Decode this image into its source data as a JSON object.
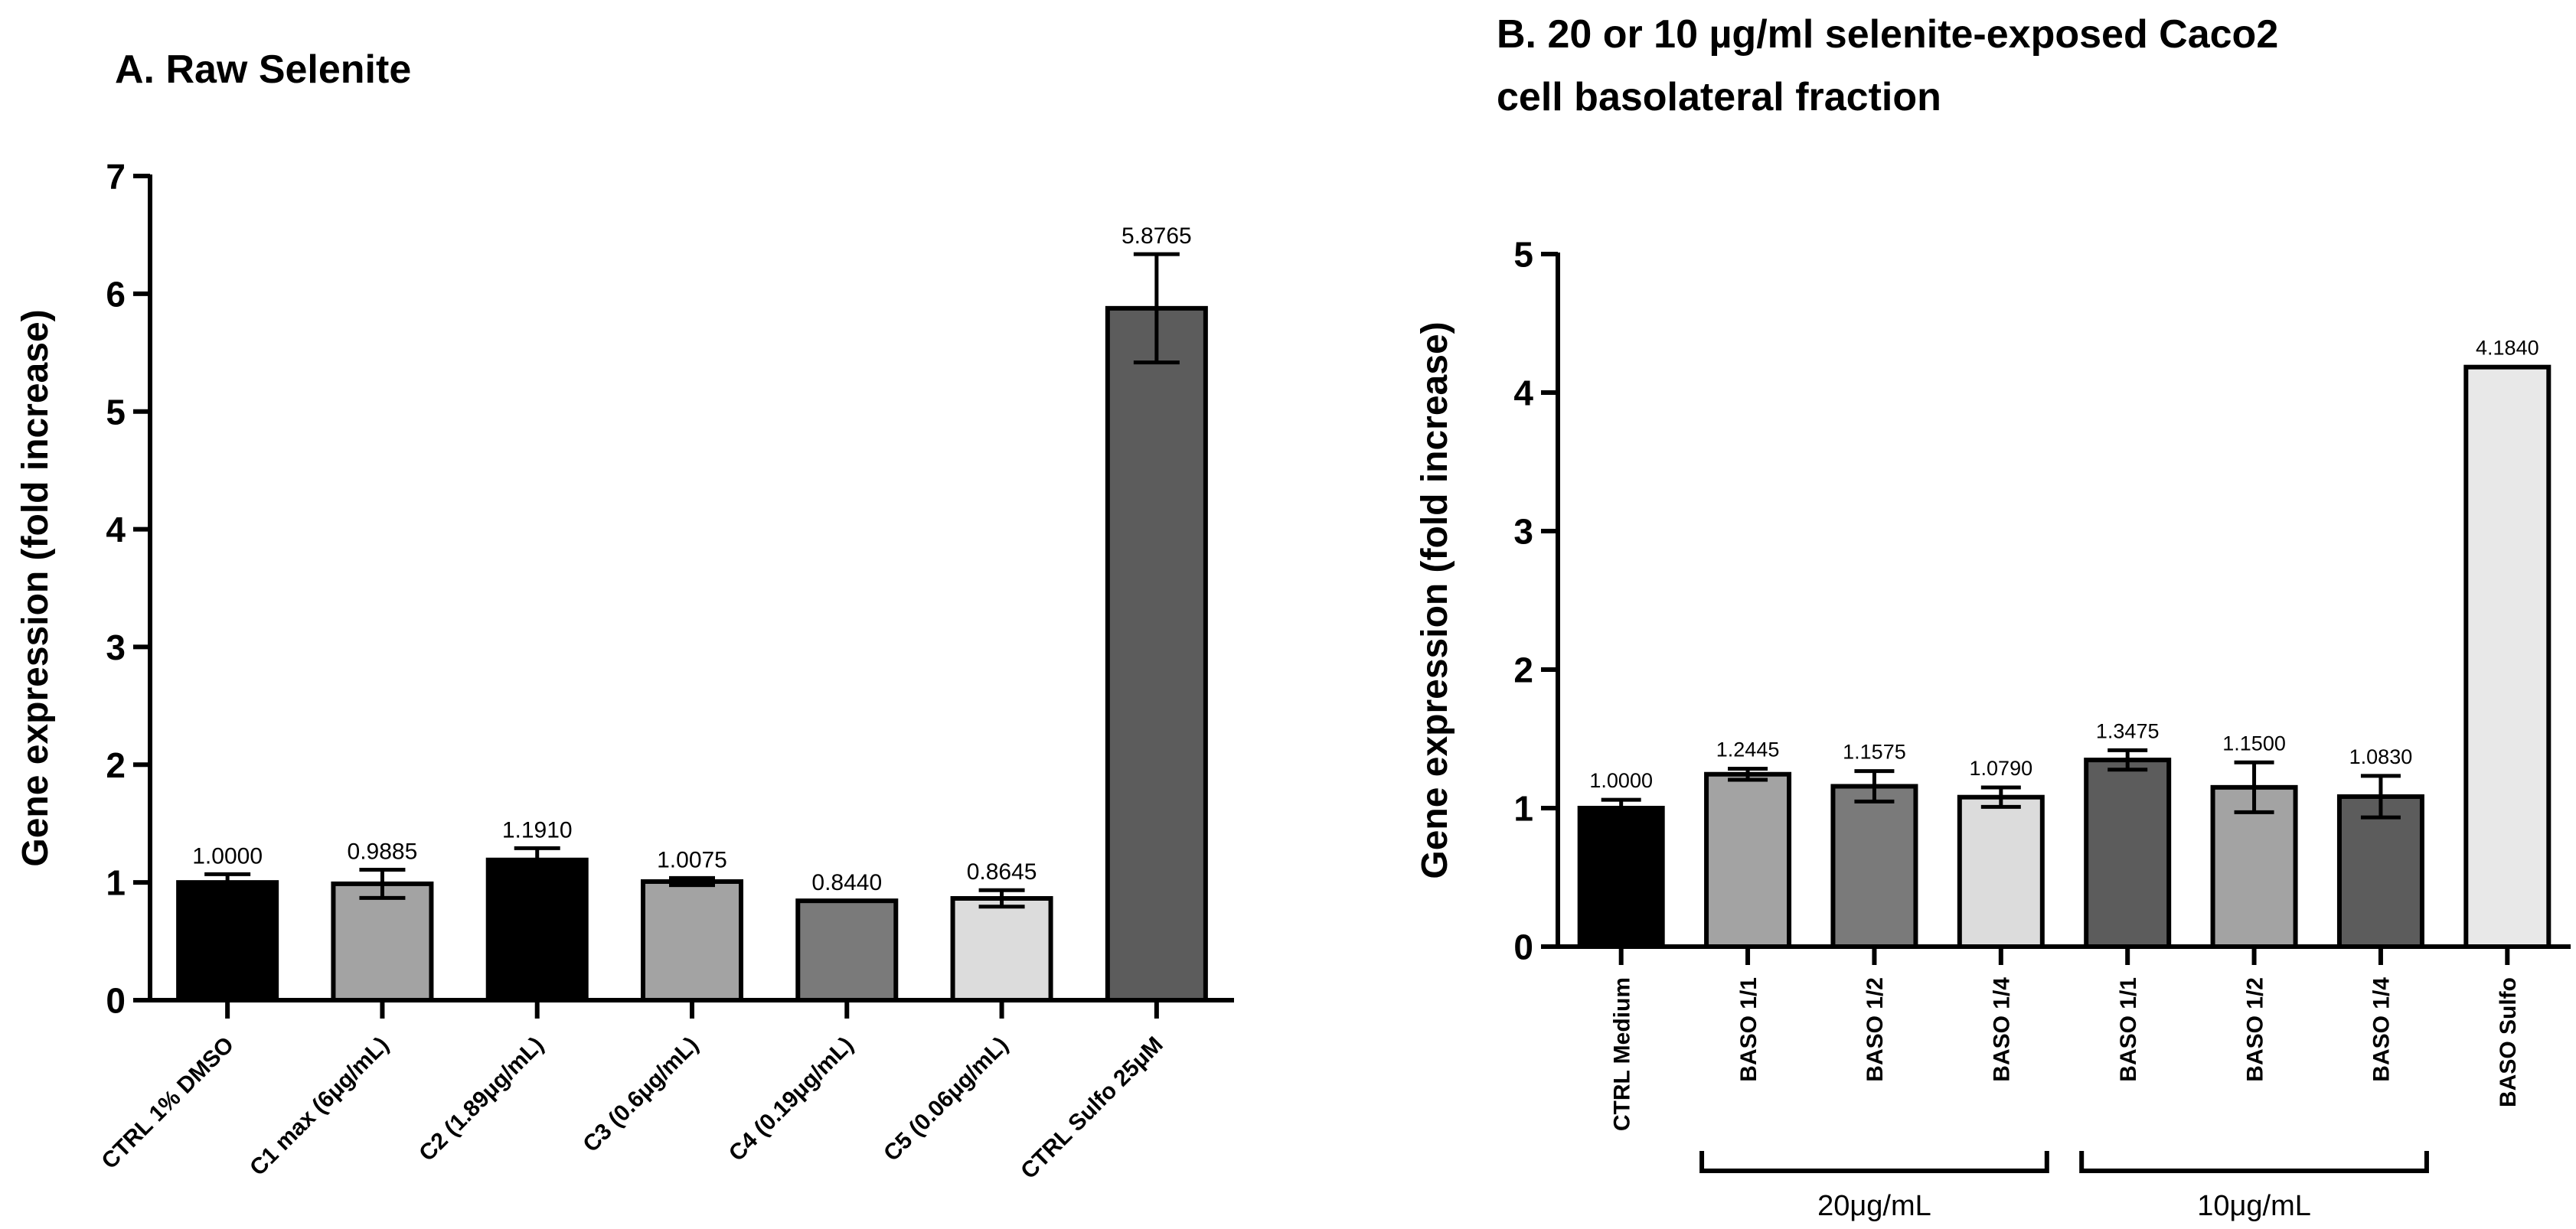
{
  "chart_data": [
    {
      "type": "bar",
      "title": "A. Raw Selenite",
      "ylabel": "Gene expression (fold increase)",
      "xlabel": "",
      "ylim": [
        0,
        7
      ],
      "yticks": [
        "0",
        "1",
        "2",
        "3",
        "4",
        "5",
        "6",
        "7"
      ],
      "grid": false,
      "categories": [
        "CTRL 1% DMSO",
        "C1 max (6μg/mL)",
        "C2 (1.89μg/mL)",
        "C3 (0.6μg/mL)",
        "C4 (0.19μg/mL)",
        "C5 (0.06μg/mL)",
        "CTRL Sulfo 25μM"
      ],
      "values": [
        1.0,
        0.9885,
        1.191,
        1.0075,
        0.844,
        0.8645,
        5.8765
      ],
      "value_labels": [
        "1.0000",
        "0.9885",
        "1.1910",
        "1.0075",
        "0.8440",
        "0.8645",
        "5.8765"
      ],
      "errors": [
        0.07,
        0.12,
        0.1,
        0.03,
        0.0,
        0.07,
        0.46
      ],
      "colors": [
        "#000000",
        "#a3a3a3",
        "#000000",
        "#a3a3a3",
        "#7a7a7a",
        "#dcdcdc",
        "#5c5c5c"
      ]
    },
    {
      "type": "bar",
      "title": [
        "B. 20 or 10 µg/ml selenite-exposed Caco2",
        "cell basolateral fraction"
      ],
      "ylabel": "Gene expression (fold increase)",
      "xlabel": "",
      "ylim": [
        0,
        5
      ],
      "yticks": [
        "0",
        "1",
        "2",
        "3",
        "4",
        "5"
      ],
      "grid": false,
      "categories": [
        "CTRL Medium",
        "BASO 1/1",
        "BASO 1/2",
        "BASO 1/4",
        "BASO 1/1",
        "BASO 1/2",
        "BASO 1/4",
        "BASO Sulfo"
      ],
      "values": [
        1.0,
        1.2445,
        1.1575,
        1.079,
        1.3475,
        1.15,
        1.083,
        4.184
      ],
      "value_labels": [
        "1.0000",
        "1.2445",
        "1.1575",
        "1.0790",
        "1.3475",
        "1.1500",
        "1.0830",
        "4.1840"
      ],
      "errors": [
        0.06,
        0.04,
        0.11,
        0.07,
        0.07,
        0.18,
        0.15,
        0.0
      ],
      "colors": [
        "#000000",
        "#a3a3a3",
        "#7a7a7a",
        "#dcdcdc",
        "#5c5c5c",
        "#a3a3a3",
        "#5c5c5c",
        "#e8e8e8"
      ],
      "groups": [
        {
          "label": "20μg/mL",
          "from": 1,
          "to": 3
        },
        {
          "label": "10μg/mL",
          "from": 4,
          "to": 6
        }
      ]
    }
  ]
}
